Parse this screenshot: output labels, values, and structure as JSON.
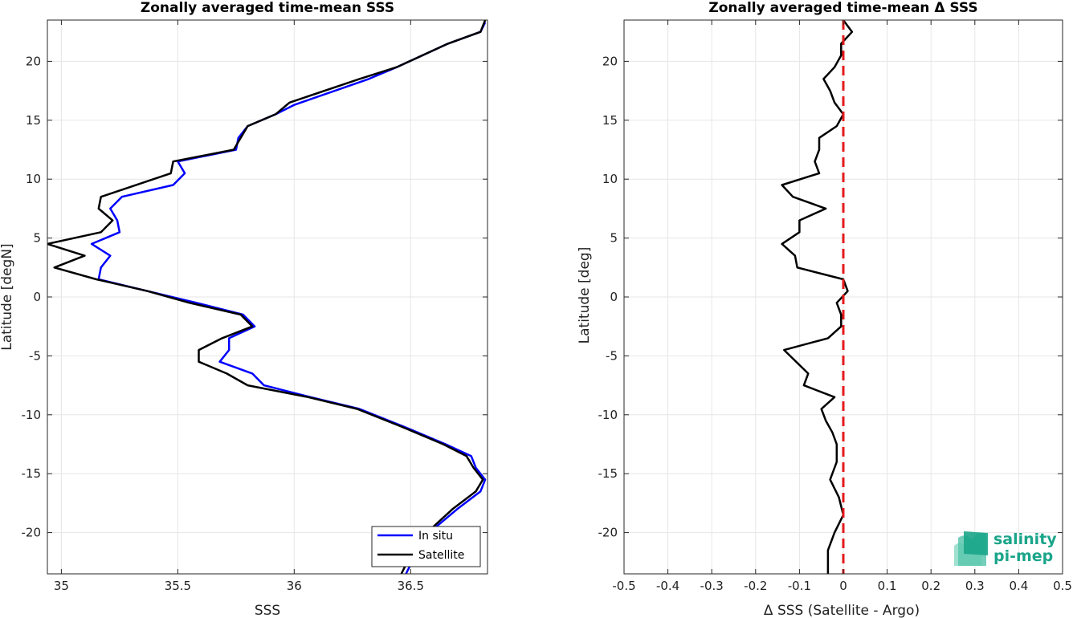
{
  "chart_data": [
    {
      "type": "line",
      "title": "Zonally averaged time-mean SSS",
      "xlabel": "SSS",
      "ylabel": "Latitude [degN]",
      "xlim": [
        34.94,
        36.83
      ],
      "ylim": [
        -23.5,
        23.5
      ],
      "xticks": [
        35,
        35.5,
        36,
        36.5
      ],
      "xtick_labels": [
        "35",
        "35.5",
        "36",
        "36.5"
      ],
      "yticks": [
        -20,
        -15,
        -10,
        -5,
        0,
        5,
        10,
        15,
        20
      ],
      "ytick_labels": [
        "-20",
        "-15",
        "-10",
        "-5",
        "0",
        "5",
        "10",
        "15",
        "20"
      ],
      "grid": true,
      "legend_position": "bottom-right",
      "series": [
        {
          "name": "In situ",
          "color": "#0000ff",
          "points": [
            [
              36.82,
              23.3
            ],
            [
              36.8,
              22.5
            ],
            [
              36.66,
              21.5
            ],
            [
              36.44,
              19.5
            ],
            [
              36.32,
              18.5
            ],
            [
              36.0,
              16.3
            ],
            [
              35.92,
              15.5
            ],
            [
              35.8,
              14.5
            ],
            [
              35.76,
              13.5
            ],
            [
              35.75,
              12.5
            ],
            [
              35.5,
              11.5
            ],
            [
              35.53,
              10.5
            ],
            [
              35.48,
              9.5
            ],
            [
              35.26,
              8.5
            ],
            [
              35.21,
              7.5
            ],
            [
              35.24,
              6.5
            ],
            [
              35.25,
              5.5
            ],
            [
              35.13,
              4.5
            ],
            [
              35.21,
              3.5
            ],
            [
              35.17,
              2.5
            ],
            [
              35.16,
              1.5
            ],
            [
              35.37,
              0.5
            ],
            [
              35.58,
              -0.5
            ],
            [
              35.78,
              -1.5
            ],
            [
              35.83,
              -2.5
            ],
            [
              35.72,
              -3.5
            ],
            [
              35.72,
              -4.5
            ],
            [
              35.68,
              -5.5
            ],
            [
              35.82,
              -6.5
            ],
            [
              35.87,
              -7.5
            ],
            [
              36.07,
              -8.5
            ],
            [
              36.28,
              -9.5
            ],
            [
              36.47,
              -11.0
            ],
            [
              36.65,
              -12.5
            ],
            [
              36.76,
              -13.5
            ],
            [
              36.78,
              -14.5
            ],
            [
              36.82,
              -15.5
            ],
            [
              36.8,
              -16.5
            ],
            [
              36.7,
              -18.0
            ],
            [
              36.58,
              -20.0
            ],
            [
              36.53,
              -21.5
            ],
            [
              36.48,
              -23.5
            ]
          ]
        },
        {
          "name": "Satellite",
          "color": "#000000",
          "points": [
            [
              36.82,
              23.5
            ],
            [
              36.8,
              22.5
            ],
            [
              36.66,
              21.5
            ],
            [
              36.44,
              19.5
            ],
            [
              36.28,
              18.5
            ],
            [
              35.98,
              16.5
            ],
            [
              35.92,
              15.5
            ],
            [
              35.8,
              14.5
            ],
            [
              35.74,
              12.5
            ],
            [
              35.48,
              11.5
            ],
            [
              35.47,
              10.5
            ],
            [
              35.17,
              8.5
            ],
            [
              35.16,
              7.5
            ],
            [
              35.22,
              6.5
            ],
            [
              35.17,
              5.5
            ],
            [
              34.94,
              4.5
            ],
            [
              35.1,
              3.5
            ],
            [
              34.97,
              2.5
            ],
            [
              35.15,
              1.5
            ],
            [
              35.37,
              0.5
            ],
            [
              35.55,
              -0.5
            ],
            [
              35.77,
              -1.5
            ],
            [
              35.82,
              -2.5
            ],
            [
              35.69,
              -3.5
            ],
            [
              35.59,
              -4.5
            ],
            [
              35.59,
              -5.5
            ],
            [
              35.71,
              -6.5
            ],
            [
              35.8,
              -7.5
            ],
            [
              36.06,
              -8.5
            ],
            [
              36.27,
              -9.5
            ],
            [
              36.46,
              -11.0
            ],
            [
              36.64,
              -12.5
            ],
            [
              36.74,
              -13.5
            ],
            [
              36.77,
              -14.5
            ],
            [
              36.81,
              -15.5
            ],
            [
              36.78,
              -16.5
            ],
            [
              36.68,
              -18.0
            ],
            [
              36.57,
              -20.0
            ],
            [
              36.51,
              -21.5
            ],
            [
              36.46,
              -23.5
            ]
          ]
        }
      ]
    },
    {
      "type": "line",
      "title": "Zonally averaged time-mean Δ SSS",
      "xlabel": "Δ SSS (Satellite - Argo)",
      "ylabel": "Latitude [deg]",
      "xlim": [
        -0.5,
        0.5
      ],
      "ylim": [
        -23.5,
        23.5
      ],
      "xticks": [
        -0.5,
        -0.4,
        -0.3,
        -0.2,
        -0.1,
        0,
        0.1,
        0.2,
        0.3,
        0.4,
        0.5
      ],
      "xtick_labels": [
        "-0.5",
        "-0.4",
        "-0.3",
        "-0.2",
        "-0.1",
        "0",
        "0.1",
        "0.2",
        "0.3",
        "0.4",
        "0.5"
      ],
      "yticks": [
        -20,
        -15,
        -10,
        -5,
        0,
        5,
        10,
        15,
        20
      ],
      "ytick_labels": [
        "-20",
        "-15",
        "-10",
        "-5",
        "0",
        "5",
        "10",
        "15",
        "20"
      ],
      "grid": true,
      "zero_line": {
        "x": 0,
        "color": "#e41a1c",
        "style": "dashed"
      },
      "series": [
        {
          "color": "#000000",
          "points": [
            [
              0.0,
              23.5
            ],
            [
              0.02,
              22.5
            ],
            [
              -0.005,
              21.5
            ],
            [
              -0.005,
              20.5
            ],
            [
              -0.02,
              19.5
            ],
            [
              -0.045,
              18.5
            ],
            [
              -0.03,
              17.5
            ],
            [
              -0.02,
              16.5
            ],
            [
              0.0,
              15.5
            ],
            [
              -0.015,
              14.5
            ],
            [
              -0.055,
              13.5
            ],
            [
              -0.055,
              12.5
            ],
            [
              -0.065,
              11.5
            ],
            [
              -0.055,
              10.5
            ],
            [
              -0.14,
              9.5
            ],
            [
              -0.115,
              8.5
            ],
            [
              -0.04,
              7.5
            ],
            [
              -0.1,
              6.5
            ],
            [
              -0.1,
              5.5
            ],
            [
              -0.14,
              4.5
            ],
            [
              -0.11,
              3.5
            ],
            [
              -0.105,
              2.5
            ],
            [
              0.0,
              1.5
            ],
            [
              0.01,
              0.5
            ],
            [
              -0.015,
              -0.5
            ],
            [
              -0.005,
              -1.5
            ],
            [
              -0.005,
              -2.5
            ],
            [
              -0.035,
              -3.5
            ],
            [
              -0.135,
              -4.5
            ],
            [
              -0.08,
              -6.5
            ],
            [
              -0.09,
              -7.5
            ],
            [
              -0.02,
              -8.5
            ],
            [
              -0.05,
              -9.5
            ],
            [
              -0.04,
              -10.5
            ],
            [
              -0.025,
              -11.5
            ],
            [
              -0.015,
              -12.5
            ],
            [
              -0.015,
              -14.0
            ],
            [
              -0.03,
              -15.5
            ],
            [
              -0.01,
              -17.0
            ],
            [
              0.0,
              -18.5
            ],
            [
              -0.02,
              -20.0
            ],
            [
              -0.035,
              -21.5
            ],
            [
              -0.035,
              -23.5
            ]
          ]
        }
      ]
    }
  ],
  "legend": {
    "items": [
      {
        "label": "In situ",
        "color": "#0000ff"
      },
      {
        "label": "Satellite",
        "color": "#000000"
      }
    ]
  },
  "logo": {
    "line1": "salinity",
    "line2": "pi-mep"
  }
}
